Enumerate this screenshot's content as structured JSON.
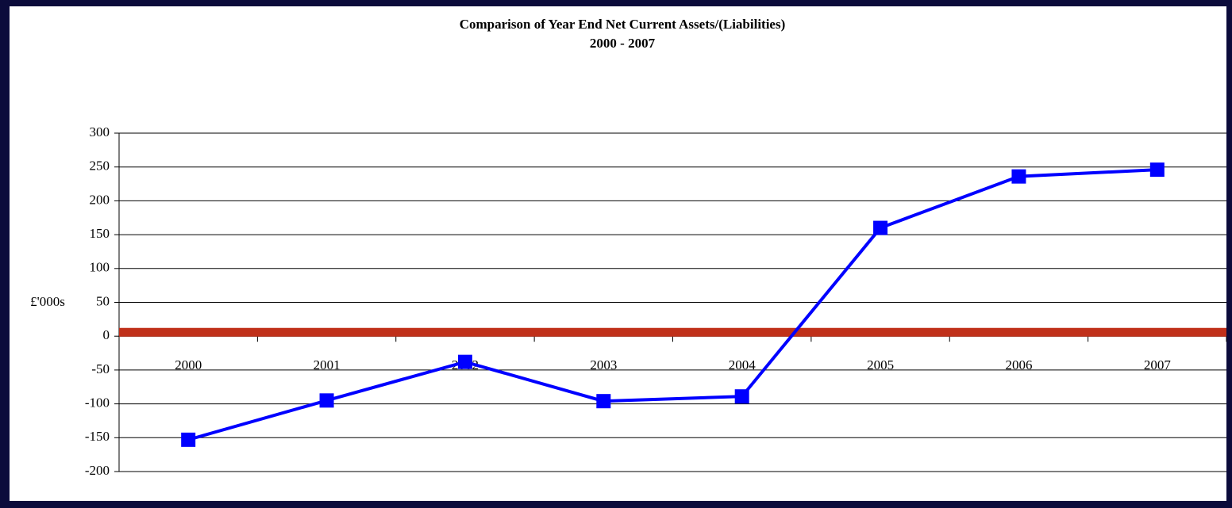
{
  "chart_data": {
    "type": "line",
    "title": "Comparison of Year End Net Current Assets/(Liabilities)",
    "subtitle": "2000 - 2007",
    "y_label": "£'000s",
    "categories": [
      "2000",
      "2001",
      "2002",
      "2003",
      "2004",
      "2005",
      "2006",
      "2007"
    ],
    "series": [
      {
        "name": "Net Current Assets",
        "color": "#0000ff",
        "values": [
          -153,
          -95,
          -38,
          -96,
          -89,
          160,
          236,
          246
        ]
      }
    ],
    "ylim": [
      -200,
      300
    ],
    "yticks": [
      -200,
      -150,
      -100,
      -50,
      0,
      50,
      100,
      150,
      200,
      250,
      300
    ],
    "grid": true,
    "reference_line": {
      "value": 0,
      "color": "#c0301a"
    }
  }
}
